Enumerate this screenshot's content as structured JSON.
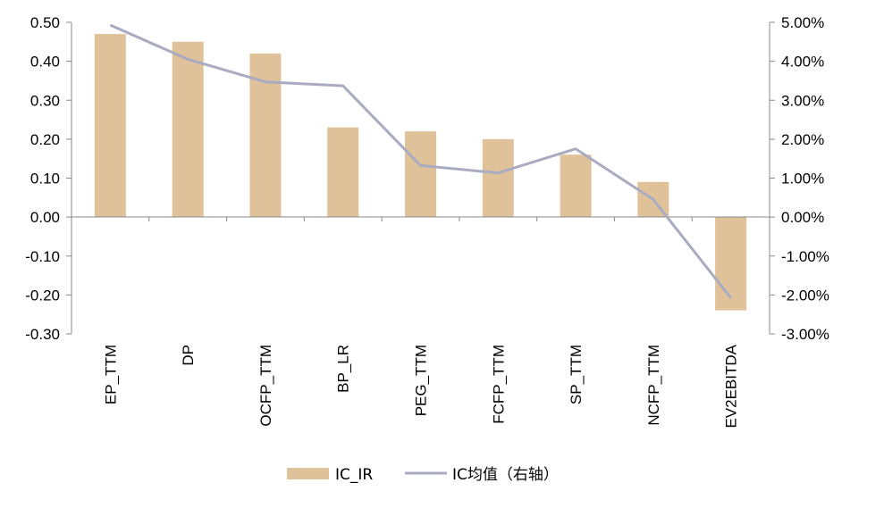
{
  "chart_data": {
    "type": "bar",
    "categories": [
      "EP_TTM",
      "DP",
      "OCFP_TTM",
      "BP_LR",
      "PEG_TTM",
      "FCFP_TTM",
      "SP_TTM",
      "NCFP_TTM",
      "EV2EBITDA"
    ],
    "series": [
      {
        "name": "IC_IR",
        "type": "bar",
        "axis": "left",
        "color": "#dfc29a",
        "values": [
          0.47,
          0.45,
          0.42,
          0.23,
          0.22,
          0.2,
          0.16,
          0.09,
          -0.24
        ]
      },
      {
        "name": "IC均值（右轴）",
        "type": "line",
        "axis": "right",
        "color": "#a9abc0",
        "values": [
          4.93,
          4.05,
          3.47,
          3.37,
          1.32,
          1.13,
          1.75,
          0.45,
          -2.08
        ]
      }
    ],
    "y_left": {
      "ylim": [
        -0.3,
        0.5
      ],
      "ticks": [
        "0.50",
        "0.40",
        "0.30",
        "0.20",
        "0.10",
        "0.00",
        "-0.10",
        "-0.20",
        "-0.30"
      ]
    },
    "y_right": {
      "ylim": [
        -3.0,
        5.0
      ],
      "ticks": [
        "5.00%",
        "4.00%",
        "3.00%",
        "2.00%",
        "1.00%",
        "0.00%",
        "-1.00%",
        "-2.00%",
        "-3.00%"
      ]
    },
    "legend": {
      "position": "bottom",
      "items": [
        "IC_IR",
        "IC均值（右轴）"
      ]
    },
    "grid": false
  }
}
